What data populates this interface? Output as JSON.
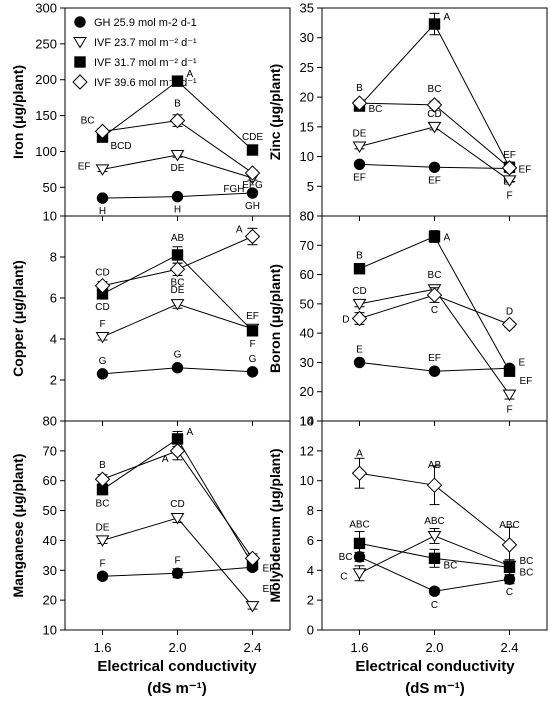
{
  "chart_data": {
    "type": "line",
    "x": [
      1.6,
      2.0,
      2.4
    ],
    "x_tick_labels": [
      "1.6",
      "2.0",
      "2.4"
    ],
    "xlabel_line1": "Electrical conductivity",
    "xlabel_line2": "(dS m⁻¹)",
    "legend": {
      "placement": "top-left of Iron panel",
      "entries": [
        {
          "series": "GH",
          "text": "GH 25.9 mol m-2 d-1"
        },
        {
          "series": "IVF23",
          "text": "IVF 23.7 mol m⁻² d⁻¹"
        },
        {
          "series": "IVF31",
          "text": "IVF 31.7 mol m⁻² d⁻¹"
        },
        {
          "series": "IVF39",
          "text": "IVF 39.6 mol m⁻² d⁻¹"
        }
      ]
    },
    "series_styles": {
      "GH": {
        "marker": "circle",
        "fill": "#000000"
      },
      "IVF23": {
        "marker": "triangle-down",
        "fill": "#ffffff"
      },
      "IVF31": {
        "marker": "square",
        "fill": "#000000"
      },
      "IVF39": {
        "marker": "diamond",
        "fill": "#ffffff"
      }
    },
    "panels": [
      {
        "id": "iron",
        "ylabel": "Iron (μg/plant)",
        "ylim": [
          10,
          300
        ],
        "yticks": [
          10,
          50,
          100,
          150,
          200,
          250,
          300
        ],
        "series": [
          {
            "key": "GH",
            "values": [
              35,
              37,
              42
            ],
            "errors": [
              2,
              2,
              3
            ],
            "letters": [
              "H",
              "H",
              "GH"
            ]
          },
          {
            "key": "IVF23",
            "values": [
              75,
              95,
              63
            ],
            "errors": [
              3,
              3,
              3
            ],
            "letters": [
              "EF",
              "DE",
              "FGH"
            ]
          },
          {
            "key": "IVF31",
            "values": [
              120,
              198,
              102
            ],
            "errors": [
              3,
              6,
              3
            ],
            "letters": [
              "BCD",
              "A",
              "CDE"
            ]
          },
          {
            "key": "IVF39",
            "values": [
              128,
              143,
              70
            ],
            "errors": [
              4,
              8,
              4
            ],
            "letters": [
              "BC",
              "B",
              "EFG"
            ]
          }
        ]
      },
      {
        "id": "zinc",
        "ylabel": "Zinc (μg/plant)",
        "ylim": [
          0,
          35
        ],
        "yticks": [
          0,
          5,
          10,
          15,
          20,
          25,
          30,
          35
        ],
        "series": [
          {
            "key": "GH",
            "values": [
              8.7,
              8.2,
              8.0
            ],
            "errors": [
              0.3,
              0.3,
              0.3
            ],
            "letters": [
              "EF",
              "EF",
              "EF"
            ]
          },
          {
            "key": "IVF23",
            "values": [
              11.7,
              15.0,
              6.0
            ],
            "errors": [
              0.4,
              0.5,
              0.3
            ],
            "letters": [
              "DE",
              "CD",
              "F"
            ]
          },
          {
            "key": "IVF31",
            "values": [
              18.5,
              32.3,
              8.2
            ],
            "errors": [
              0.5,
              1.8,
              0.4
            ],
            "letters": [
              "BC",
              "A",
              "EF"
            ]
          },
          {
            "key": "IVF39",
            "values": [
              19.0,
              18.7,
              8.1
            ],
            "errors": [
              0.5,
              0.6,
              0.4
            ],
            "letters": [
              "B",
              "BC",
              "EF"
            ]
          }
        ]
      },
      {
        "id": "copper",
        "ylabel": "Copper (μg/plant)",
        "ylim": [
          0,
          10
        ],
        "yticks": [
          2,
          4,
          6,
          8
        ],
        "series": [
          {
            "key": "GH",
            "values": [
              2.3,
              2.6,
              2.4
            ],
            "errors": [
              0.1,
              0.1,
              0.1
            ],
            "letters": [
              "G",
              "G",
              "G"
            ]
          },
          {
            "key": "IVF23",
            "values": [
              4.1,
              5.7,
              4.5
            ],
            "errors": [
              0.15,
              0.2,
              0.15
            ],
            "letters": [
              "F",
              "DE",
              "EF"
            ]
          },
          {
            "key": "IVF31",
            "values": [
              6.2,
              8.1,
              4.4
            ],
            "errors": [
              0.2,
              0.4,
              0.2
            ],
            "letters": [
              "CD",
              "AB",
              "F"
            ]
          },
          {
            "key": "IVF39",
            "values": [
              6.6,
              7.4,
              9.0
            ],
            "errors": [
              0.2,
              0.3,
              0.4
            ],
            "letters": [
              "CD",
              "BC",
              "A"
            ]
          }
        ]
      },
      {
        "id": "boron",
        "ylabel": "Boron (μg/plant)",
        "ylim": [
          10,
          80
        ],
        "yticks": [
          10,
          20,
          30,
          40,
          50,
          60,
          70,
          80
        ],
        "series": [
          {
            "key": "GH",
            "values": [
              30,
              27,
              28
            ],
            "errors": [
              0.8,
              0.8,
              0.8
            ],
            "letters": [
              "E",
              "EF",
              "E"
            ]
          },
          {
            "key": "IVF23",
            "values": [
              50,
              55,
              19
            ],
            "errors": [
              1,
              1.2,
              1.5
            ],
            "letters": [
              "CD",
              "BC",
              "F"
            ]
          },
          {
            "key": "IVF31",
            "values": [
              62,
              73,
              27
            ],
            "errors": [
              1,
              2,
              1
            ],
            "letters": [
              "B",
              "A",
              "EF"
            ]
          },
          {
            "key": "IVF39",
            "values": [
              45,
              53,
              43
            ],
            "errors": [
              2,
              2.5,
              1
            ],
            "letters": [
              "D",
              "C",
              "D"
            ]
          }
        ]
      },
      {
        "id": "manganese",
        "ylabel": "Manganese (μg/plant)",
        "ylim": [
          10,
          80
        ],
        "yticks": [
          10,
          20,
          30,
          40,
          50,
          60,
          70,
          80
        ],
        "series": [
          {
            "key": "GH",
            "values": [
              28,
              29,
              31
            ],
            "errors": [
              1,
              1.5,
              1
            ],
            "letters": [
              "F",
              "F",
              "EF"
            ]
          },
          {
            "key": "IVF23",
            "values": [
              40,
              47.5,
              18
            ],
            "errors": [
              1,
              1.5,
              1
            ],
            "letters": [
              "DE",
              "CD",
              "EF"
            ]
          },
          {
            "key": "IVF31",
            "values": [
              57,
              74,
              32
            ],
            "errors": [
              1.5,
              2.5,
              1.5
            ],
            "letters": [
              "BC",
              "A",
              ""
            ]
          },
          {
            "key": "IVF39",
            "values": [
              60.5,
              70,
              34
            ],
            "errors": [
              1.5,
              3,
              1.5
            ],
            "letters": [
              "B",
              "A",
              ""
            ]
          }
        ]
      },
      {
        "id": "molybdenum",
        "ylabel": "Molybdenum (μg/plant)",
        "ylim": [
          0,
          14
        ],
        "yticks": [
          0,
          2,
          4,
          6,
          8,
          10,
          12,
          14
        ],
        "series": [
          {
            "key": "GH",
            "values": [
              4.9,
              2.6,
              3.4
            ],
            "errors": [
              0.3,
              0.2,
              0.3
            ],
            "letters": [
              "BC",
              "C",
              "C"
            ]
          },
          {
            "key": "IVF23",
            "values": [
              3.8,
              6.3,
              4.3
            ],
            "errors": [
              0.5,
              0.5,
              0.4
            ],
            "letters": [
              "C",
              "ABC",
              "BC"
            ]
          },
          {
            "key": "IVF31",
            "values": [
              5.8,
              4.8,
              4.2
            ],
            "errors": [
              0.8,
              0.6,
              0.5
            ],
            "letters": [
              "ABC",
              "BC",
              "BC"
            ]
          },
          {
            "key": "IVF39",
            "values": [
              10.5,
              9.7,
              5.7
            ],
            "errors": [
              1.0,
              1.3,
              1.2
            ],
            "letters": [
              "A",
              "AB",
              "ABC"
            ]
          }
        ]
      }
    ]
  }
}
